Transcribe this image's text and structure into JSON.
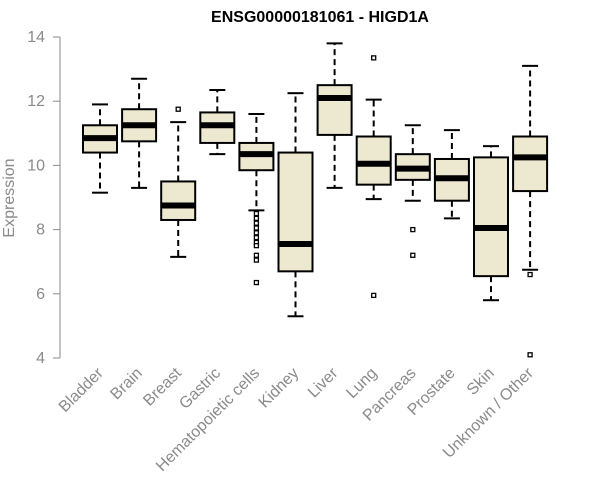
{
  "chart_data": {
    "type": "boxplot",
    "title": "ENSG00000181061 - HIGD1A",
    "xlabel": "",
    "ylabel": "Expression",
    "ylim": [
      4,
      14
    ],
    "yticks": [
      4,
      6,
      8,
      10,
      12,
      14
    ],
    "box_fill": "#ede8d0",
    "categories": [
      "Bladder",
      "Brain",
      "Breast",
      "Gastric",
      "Hematopoietic cells",
      "Kidney",
      "Liver",
      "Lung",
      "Pancreas",
      "Prostate",
      "Skin",
      "Unknown / Other"
    ],
    "boxes": [
      {
        "name": "Bladder",
        "whisker_low": 9.15,
        "q1": 10.4,
        "median": 10.85,
        "q3": 11.25,
        "whisker_high": 11.9,
        "outliers": []
      },
      {
        "name": "Brain",
        "whisker_low": 9.3,
        "q1": 10.75,
        "median": 11.25,
        "q3": 11.75,
        "whisker_high": 12.7,
        "outliers": []
      },
      {
        "name": "Breast",
        "whisker_low": 7.15,
        "q1": 8.3,
        "median": 8.75,
        "q3": 9.5,
        "whisker_high": 11.35,
        "outliers": [
          11.75
        ]
      },
      {
        "name": "Gastric",
        "whisker_low": 10.35,
        "q1": 10.7,
        "median": 11.25,
        "q3": 11.65,
        "whisker_high": 12.35,
        "outliers": []
      },
      {
        "name": "Hematopoietic cells",
        "whisker_low": 8.6,
        "q1": 9.85,
        "median": 10.35,
        "q3": 10.7,
        "whisker_high": 11.6,
        "outliers": [
          8.5,
          8.35,
          8.2,
          8.05,
          7.9,
          7.75,
          7.6,
          7.5,
          7.2,
          7.05,
          6.35
        ]
      },
      {
        "name": "Kidney",
        "whisker_low": 5.3,
        "q1": 6.7,
        "median": 7.55,
        "q3": 10.4,
        "whisker_high": 12.25,
        "outliers": []
      },
      {
        "name": "Liver",
        "whisker_low": 9.3,
        "q1": 10.95,
        "median": 12.1,
        "q3": 12.5,
        "whisker_high": 13.8,
        "outliers": []
      },
      {
        "name": "Lung",
        "whisker_low": 8.95,
        "q1": 9.4,
        "median": 10.05,
        "q3": 10.9,
        "whisker_high": 12.05,
        "outliers": [
          13.35,
          5.95
        ]
      },
      {
        "name": "Pancreas",
        "whisker_low": 8.9,
        "q1": 9.55,
        "median": 9.9,
        "q3": 10.35,
        "whisker_high": 11.25,
        "outliers": [
          8.0,
          7.2
        ]
      },
      {
        "name": "Prostate",
        "whisker_low": 8.35,
        "q1": 8.9,
        "median": 9.6,
        "q3": 10.2,
        "whisker_high": 11.1,
        "outliers": []
      },
      {
        "name": "Skin",
        "whisker_low": 5.8,
        "q1": 6.55,
        "median": 8.05,
        "q3": 10.25,
        "whisker_high": 10.6,
        "outliers": []
      },
      {
        "name": "Unknown / Other",
        "whisker_low": 6.75,
        "q1": 9.2,
        "median": 10.25,
        "q3": 10.9,
        "whisker_high": 13.1,
        "outliers": [
          6.6,
          4.1
        ]
      }
    ]
  }
}
